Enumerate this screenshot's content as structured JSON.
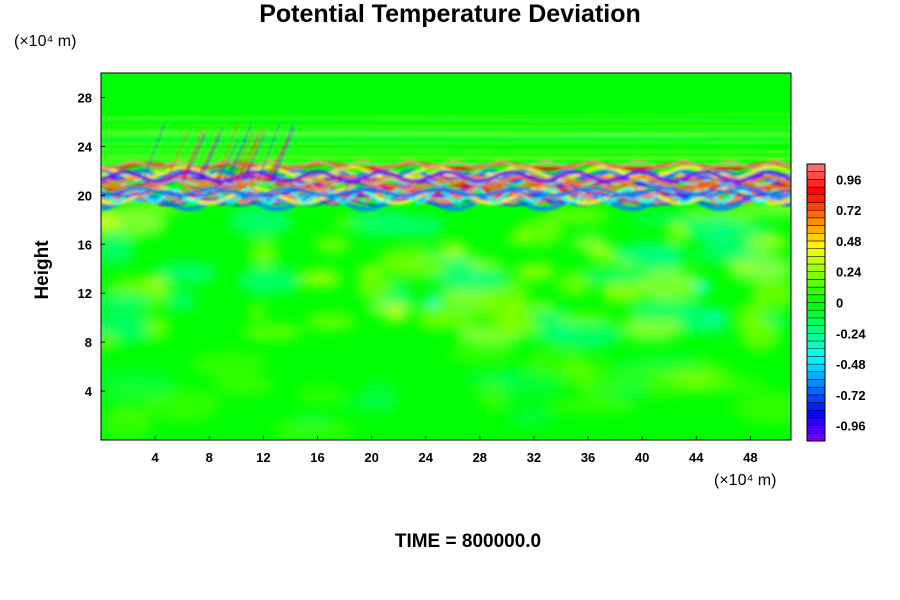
{
  "chart_data": {
    "type": "heatmap",
    "title": "Potential Temperature Deviation",
    "xlabel": "",
    "ylabel": "Height",
    "x_unit": "(×10⁴ m)",
    "y_unit": "(×10⁴ m)",
    "xlim": [
      0,
      51
    ],
    "ylim": [
      0,
      30
    ],
    "x_ticks": [
      4,
      8,
      12,
      16,
      20,
      24,
      28,
      32,
      36,
      40,
      44,
      48
    ],
    "y_ticks": [
      4,
      8,
      12,
      16,
      20,
      24,
      28
    ],
    "colorbar": {
      "range": [
        -1.08,
        1.08
      ],
      "tick_values": [
        0.96,
        0.72,
        0.48,
        0.24,
        0,
        -0.24,
        -0.48,
        -0.72,
        -0.96
      ],
      "tick_labels": [
        "0.96",
        "0.72",
        "0.48",
        "0.24",
        "0",
        "-0.24",
        "-0.48",
        "-0.72",
        "-0.96"
      ],
      "colors": [
        "#8000ff",
        "#0000ff",
        "#0080ff",
        "#00ffff",
        "#00ff80",
        "#00ff00",
        "#80ff00",
        "#ffff00",
        "#ff8000",
        "#ff0000",
        "#ff8080"
      ]
    },
    "annotation": "TIME = 800000.0"
  }
}
